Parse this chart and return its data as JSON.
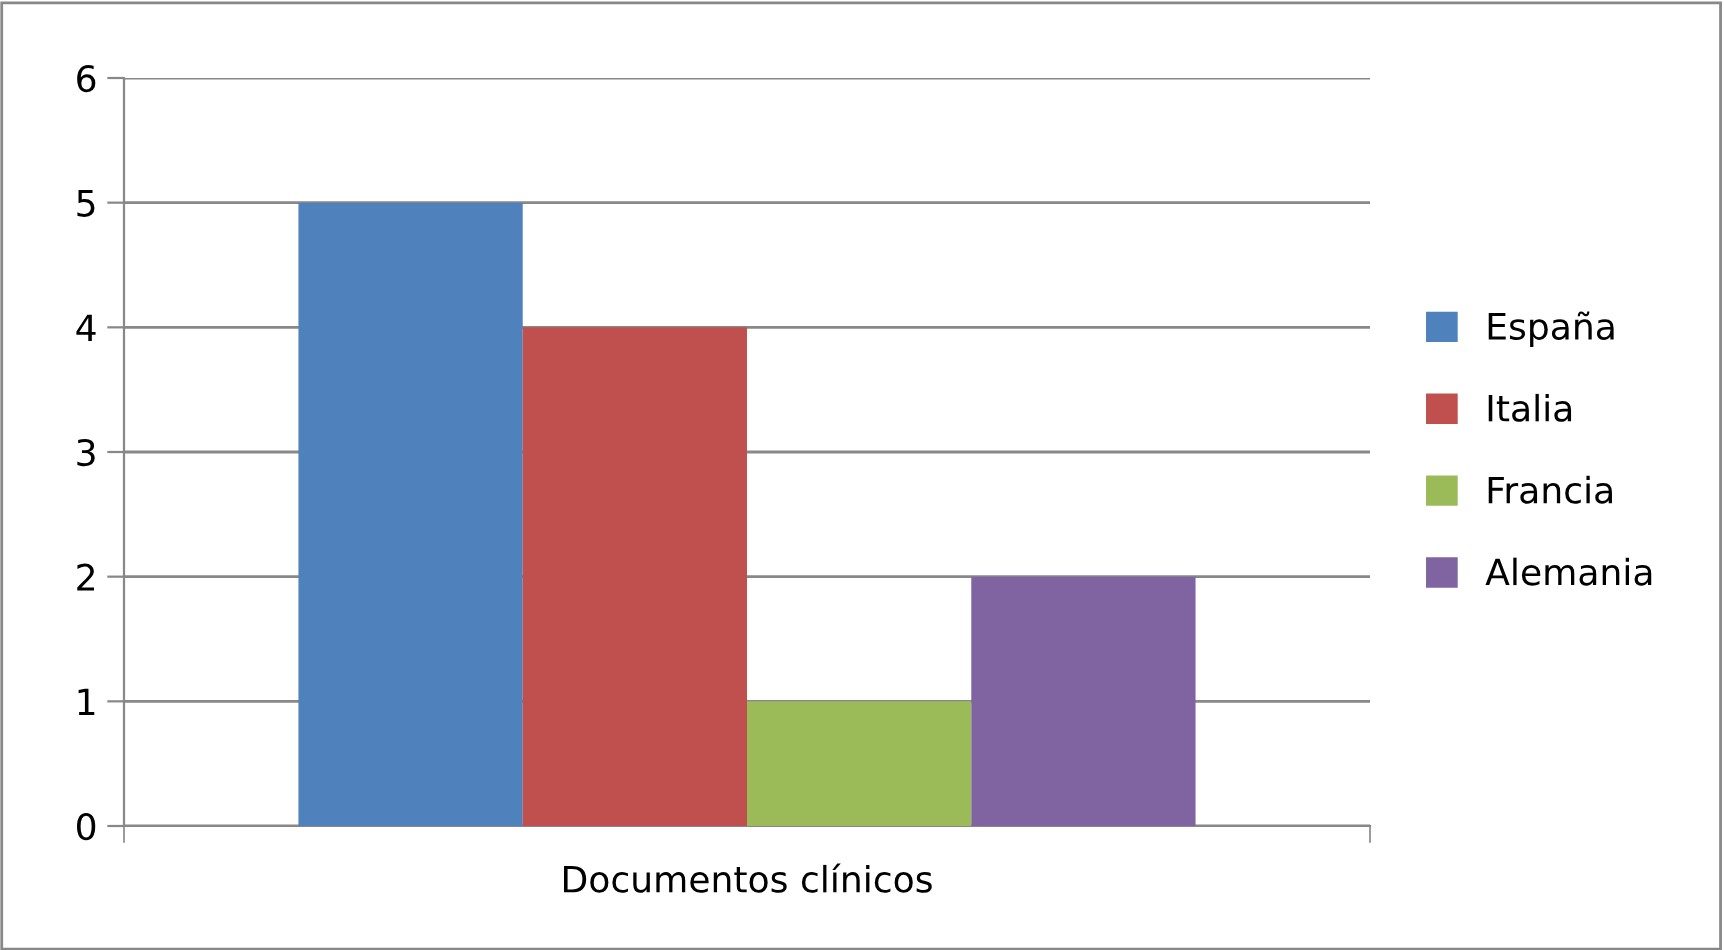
{
  "chart_data": {
    "type": "bar",
    "categories": [
      "Documentos clínicos"
    ],
    "series": [
      {
        "name": "España",
        "color": "#4f81bd",
        "values": [
          5
        ]
      },
      {
        "name": "Italia",
        "color": "#c0504d",
        "values": [
          4
        ]
      },
      {
        "name": "Francia",
        "color": "#9bbb59",
        "values": [
          1
        ]
      },
      {
        "name": "Alemania",
        "color": "#8064a2",
        "values": [
          2
        ]
      }
    ],
    "ylim": [
      0,
      6
    ],
    "yticks": [
      0,
      1,
      2,
      3,
      4,
      5,
      6
    ],
    "grid": "y",
    "legend": "right"
  }
}
